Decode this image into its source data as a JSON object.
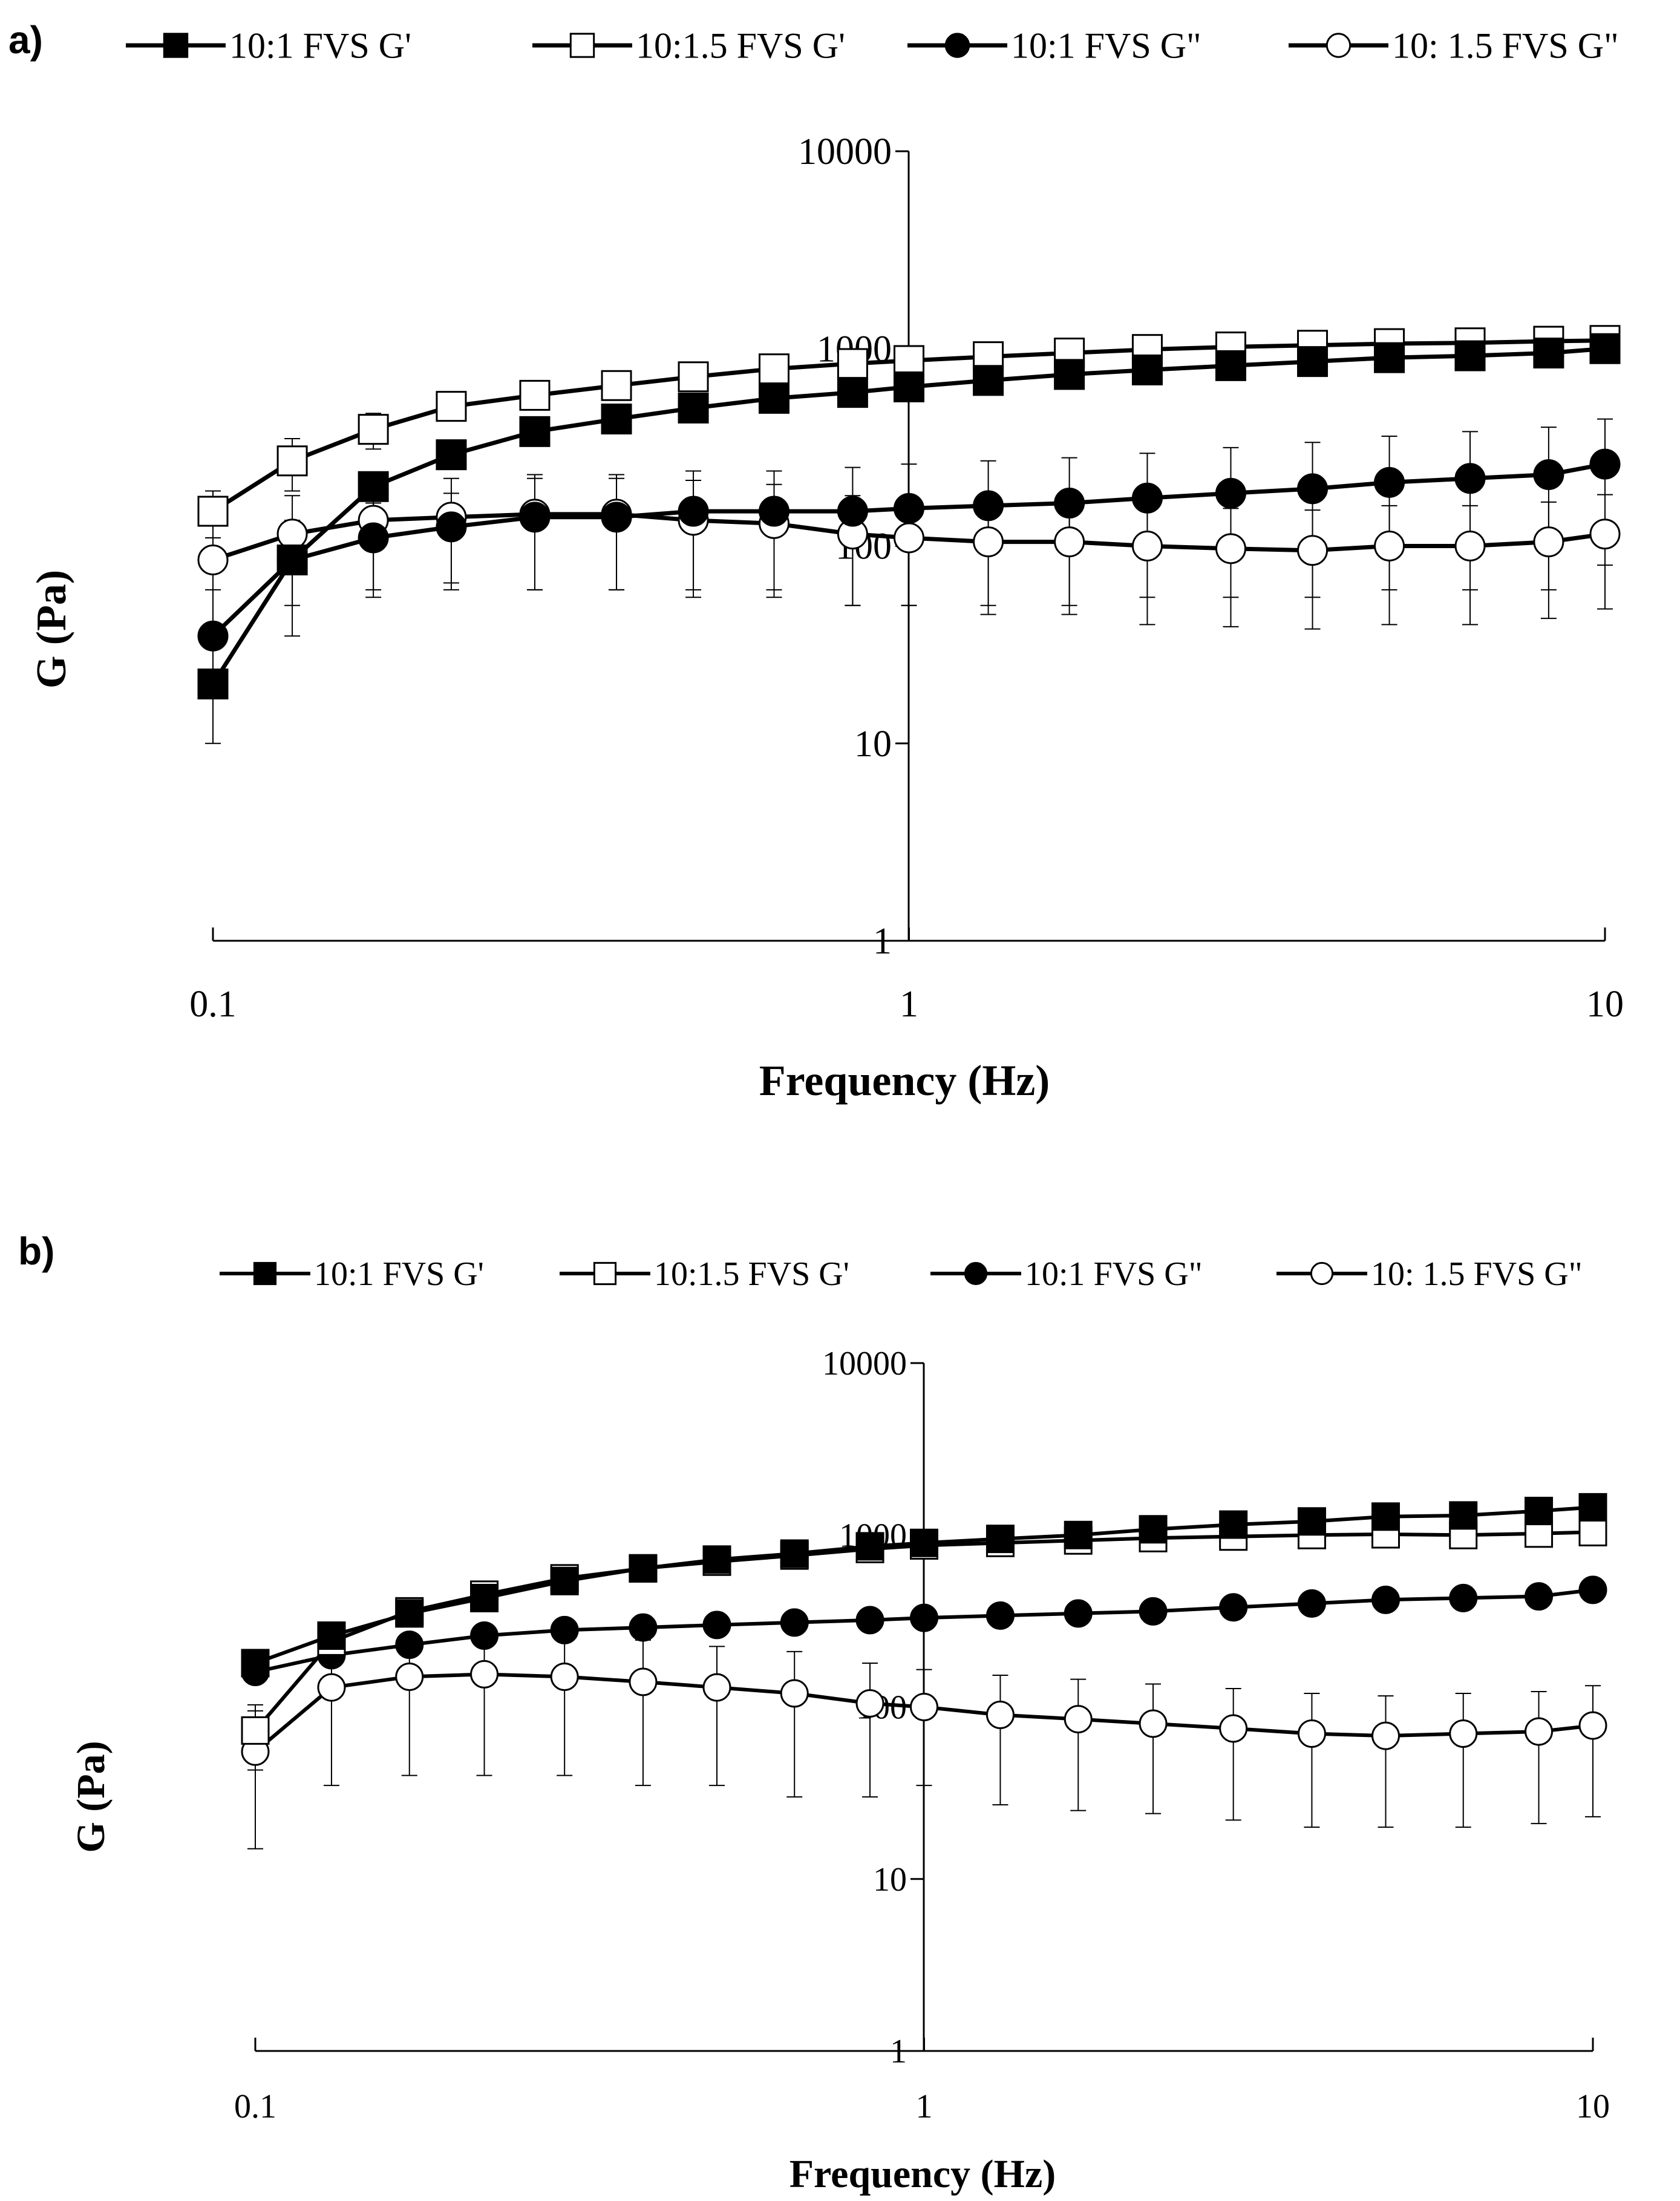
{
  "colors": {
    "ink": "#000000",
    "paper": "#ffffff"
  },
  "chart_data": [
    {
      "panel_label": "a)",
      "type": "line",
      "xscale": "log",
      "yscale": "log",
      "xlabel": "Frequency (Hz)",
      "ylabel": "G (Pa)",
      "xlim": [
        0.1,
        10
      ],
      "ylim": [
        1,
        10000
      ],
      "xticks": [
        "0.1",
        "1",
        "10"
      ],
      "yticks": [
        "1",
        "10",
        "100",
        "1000",
        "10000"
      ],
      "legend_position": "top",
      "x": [
        0.1,
        0.13,
        0.17,
        0.22,
        0.29,
        0.38,
        0.49,
        0.64,
        0.83,
        1.0,
        1.3,
        1.7,
        2.2,
        2.9,
        3.8,
        4.9,
        6.4,
        8.3,
        10.0
      ],
      "series": [
        {
          "name": "10:1 FVS G'",
          "marker": "square-filled",
          "values": [
            20,
            85,
            200,
            290,
            380,
            440,
            500,
            560,
            600,
            640,
            690,
            740,
            780,
            820,
            860,
            900,
            920,
            950,
            1000
          ]
        },
        {
          "name": "10:1.5 FVS G'",
          "marker": "square-open",
          "values": [
            150,
            270,
            390,
            510,
            580,
            650,
            720,
            790,
            840,
            870,
            910,
            950,
            990,
            1020,
            1040,
            1060,
            1070,
            1090,
            1100
          ],
          "errors": [
            40,
            80,
            80,
            80,
            80,
            90,
            100,
            110,
            120,
            130,
            140,
            150,
            160,
            170,
            180,
            180,
            190,
            190,
            200
          ]
        },
        {
          "name": "10:1 FVS G\"",
          "marker": "circle-filled",
          "values": [
            35,
            85,
            110,
            125,
            140,
            140,
            150,
            150,
            150,
            155,
            160,
            165,
            175,
            185,
            195,
            210,
            220,
            230,
            260
          ],
          "errors": [
            25,
            50,
            55,
            60,
            80,
            80,
            90,
            90,
            100,
            105,
            110,
            115,
            120,
            130,
            140,
            150,
            160,
            170,
            180
          ]
        },
        {
          "name": "10: 1.5 FVS G\"",
          "marker": "circle-open",
          "values": [
            85,
            115,
            135,
            140,
            145,
            145,
            135,
            130,
            115,
            110,
            105,
            105,
            100,
            97,
            95,
            100,
            100,
            105,
            115
          ],
          "errors": [
            45,
            65,
            75,
            80,
            85,
            85,
            80,
            75,
            65,
            60,
            60,
            60,
            60,
            58,
            57,
            60,
            60,
            62,
            67
          ]
        }
      ]
    },
    {
      "panel_label": "b)",
      "type": "line",
      "xscale": "log",
      "yscale": "log",
      "xlabel": "Frequency (Hz)",
      "ylabel": "G (Pa)",
      "xlim": [
        0.1,
        10
      ],
      "ylim": [
        1,
        10000
      ],
      "xticks": [
        "0.1",
        "1",
        "10"
      ],
      "yticks": [
        "1",
        "10",
        "100",
        "1000",
        "10000"
      ],
      "legend_position": "top",
      "x": [
        0.1,
        0.13,
        0.17,
        0.22,
        0.29,
        0.38,
        0.49,
        0.64,
        0.83,
        1.0,
        1.3,
        1.7,
        2.2,
        2.9,
        3.8,
        4.9,
        6.4,
        8.3,
        10.0
      ],
      "series": [
        {
          "name": "10:1 FVS G'",
          "marker": "square-filled",
          "values": [
            180,
            260,
            350,
            430,
            540,
            640,
            720,
            780,
            860,
            900,
            950,
            1000,
            1080,
            1150,
            1200,
            1280,
            1300,
            1380,
            1450
          ]
        },
        {
          "name": "10:1.5 FVS G'",
          "marker": "square-open",
          "values": [
            73,
            240,
            360,
            450,
            560,
            640,
            700,
            760,
            830,
            870,
            900,
            930,
            960,
            980,
            1000,
            1010,
            1000,
            1020,
            1040
          ],
          "errors": [
            30,
            50,
            60,
            70,
            80,
            80,
            90,
            90,
            100,
            100,
            100,
            110,
            110,
            110,
            120,
            120,
            120,
            120,
            130
          ]
        },
        {
          "name": "10:1 FVS G\"",
          "marker": "circle-filled",
          "values": [
            160,
            200,
            230,
            260,
            280,
            290,
            300,
            310,
            320,
            330,
            340,
            350,
            360,
            380,
            400,
            420,
            430,
            440,
            480
          ]
        },
        {
          "name": "10: 1.5 FVS G\"",
          "marker": "circle-open",
          "values": [
            55,
            130,
            150,
            155,
            150,
            140,
            130,
            120,
            105,
            100,
            90,
            85,
            80,
            75,
            70,
            68,
            70,
            72,
            78
          ],
          "errors": [
            40,
            95,
            110,
            115,
            110,
            105,
            95,
            90,
            75,
            65,
            63,
            60,
            56,
            53,
            50,
            48,
            50,
            51,
            55
          ]
        }
      ]
    }
  ]
}
